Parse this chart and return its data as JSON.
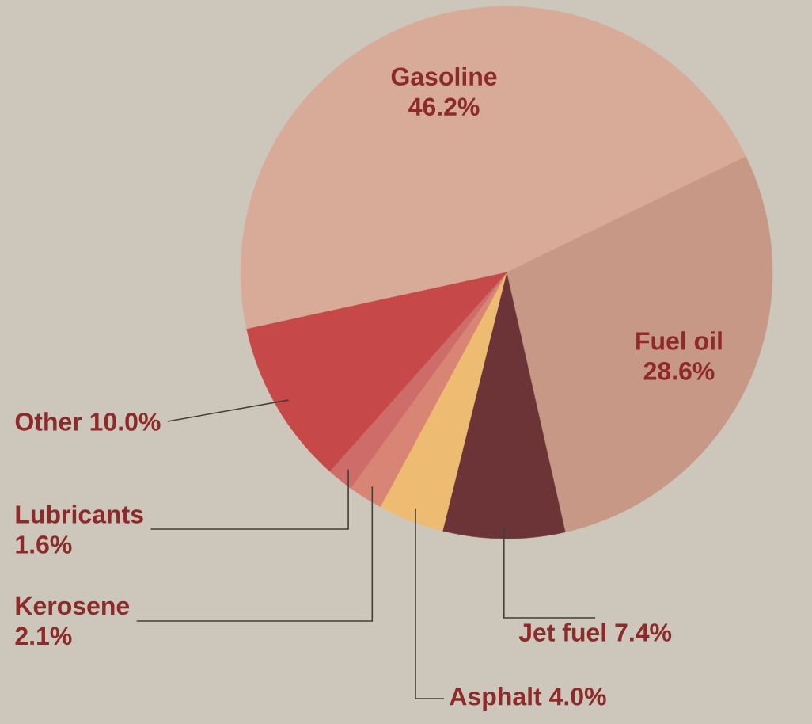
{
  "chart_data": {
    "type": "pie",
    "categories": [
      "Gasoline",
      "Fuel oil",
      "Jet fuel",
      "Asphalt",
      "Kerosene",
      "Lubricants",
      "Other"
    ],
    "values": [
      46.2,
      28.6,
      7.4,
      4.0,
      2.1,
      1.6,
      10.0
    ],
    "value_labels": [
      "46.2%",
      "28.6%",
      "7.4%",
      "4.0%",
      "2.1%",
      "1.6%",
      "10.0%"
    ],
    "colors": [
      "#d8ab98",
      "#c89886",
      "#6c3436",
      "#eebb72",
      "#d98576",
      "#cd6c68",
      "#c64848"
    ]
  }
}
